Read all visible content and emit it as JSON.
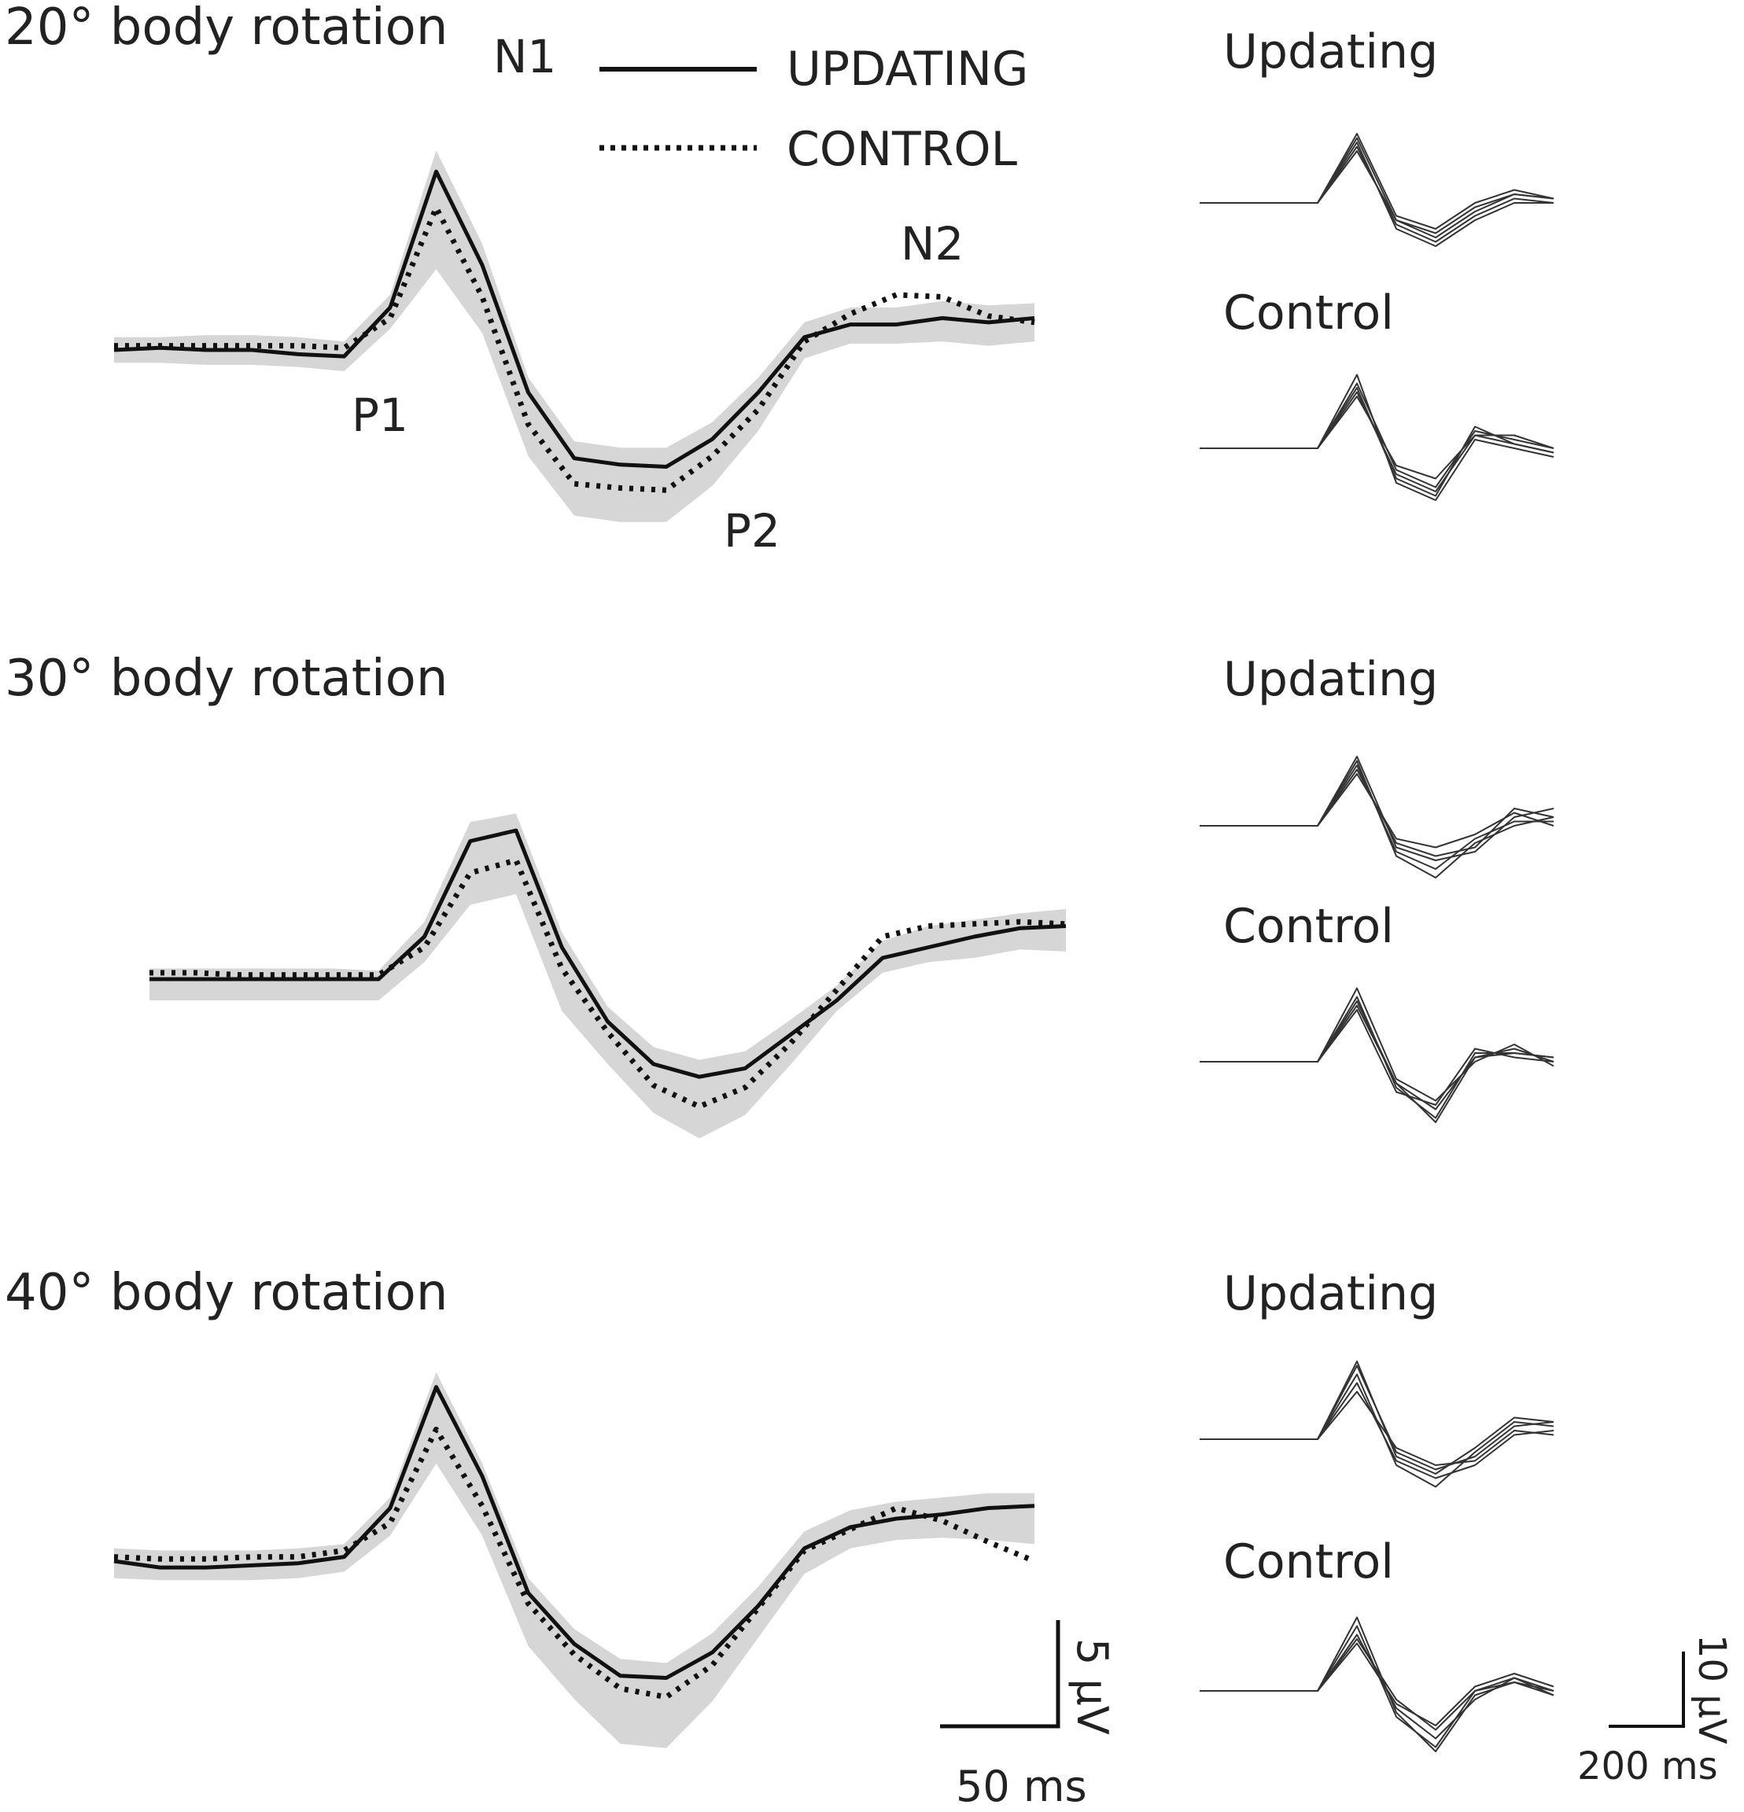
{
  "legend": {
    "updating": "UPDATING",
    "control": "CONTROL"
  },
  "peak_labels": [
    "N1",
    "P1",
    "P2",
    "N2"
  ],
  "scale_bars": {
    "main": {
      "amplitude": "5 μV",
      "time": "50 ms"
    },
    "individual": {
      "amplitude": "10 μV",
      "time": "200 ms"
    }
  },
  "colors": {
    "updating_line": "#111111",
    "control_line": "#111111",
    "error_band": "#d6d6d6",
    "individual_traces": "#333333"
  },
  "chart_data": [
    {
      "type": "line",
      "title": "20° body rotation",
      "x": [
        0,
        10,
        20,
        30,
        40,
        50,
        60,
        70,
        80,
        90,
        100,
        110,
        120,
        130,
        140,
        150,
        160,
        170,
        180,
        190,
        200
      ],
      "series": [
        {
          "name": "UPDATING",
          "style": "solid",
          "values": [
            0,
            0.1,
            0,
            0,
            -0.2,
            -0.3,
            2.0,
            8.4,
            4.0,
            -2.0,
            -5.1,
            -5.4,
            -5.5,
            -4.2,
            -2.0,
            0.6,
            1.2,
            1.2,
            1.5,
            1.3,
            1.5
          ]
        },
        {
          "name": "CONTROL",
          "style": "dotted",
          "values": [
            0.2,
            0.2,
            0.2,
            0.2,
            0.2,
            0.1,
            1.5,
            6.7,
            2.5,
            -3.5,
            -6.3,
            -6.5,
            -6.6,
            -5.0,
            -2.8,
            0.4,
            1.7,
            2.6,
            2.5,
            1.6,
            1.3
          ]
        }
      ],
      "band": {
        "upper": [
          0.6,
          0.6,
          0.7,
          0.7,
          0.6,
          0.4,
          2.6,
          9.4,
          5.0,
          -1.3,
          -4.3,
          -4.6,
          -4.6,
          -3.4,
          -1.3,
          1.3,
          2.0,
          2.0,
          2.3,
          2.1,
          2.2
        ],
        "lower": [
          -0.6,
          -0.6,
          -0.7,
          -0.7,
          -0.8,
          -1.0,
          1.0,
          3.8,
          0.8,
          -5.0,
          -7.8,
          -8.1,
          -8.1,
          -6.4,
          -3.8,
          -0.4,
          0.3,
          0.3,
          0.4,
          0.2,
          0.4
        ]
      },
      "peaks": {
        "P1": [
          55,
          -0.3
        ],
        "N1": [
          83,
          8.4
        ],
        "P2": [
          127,
          -6.6
        ],
        "N2": [
          178,
          2.6
        ]
      },
      "xlim": [
        0,
        200
      ],
      "ylim": [
        -10,
        10
      ],
      "xlabel": "",
      "ylabel": "",
      "grid": false
    },
    {
      "type": "line",
      "title": "30° body rotation",
      "x": [
        0,
        10,
        20,
        30,
        40,
        50,
        60,
        70,
        80,
        90,
        100,
        110,
        120,
        130,
        140,
        150,
        160,
        170,
        180,
        190,
        200
      ],
      "series": [
        {
          "name": "UPDATING",
          "style": "solid",
          "values": [
            0,
            0,
            0,
            0,
            0,
            0,
            2.0,
            6.5,
            7.0,
            1.5,
            -2.0,
            -4.0,
            -4.6,
            -4.2,
            -2.6,
            -1.0,
            1.0,
            1.5,
            2.0,
            2.4,
            2.5
          ]
        },
        {
          "name": "CONTROL",
          "style": "dotted",
          "values": [
            0.3,
            0.3,
            0.2,
            0.2,
            0.2,
            0.2,
            1.5,
            5.0,
            5.6,
            0.5,
            -2.5,
            -5.0,
            -6.0,
            -5.1,
            -3.0,
            -0.5,
            2.0,
            2.5,
            2.6,
            2.7,
            2.6
          ]
        }
      ],
      "band": {
        "upper": [
          0.5,
          0.5,
          0.5,
          0.5,
          0.5,
          0.4,
          2.7,
          7.4,
          7.8,
          2.2,
          -1.3,
          -3.2,
          -3.8,
          -3.4,
          -1.9,
          -0.3,
          1.8,
          2.5,
          2.8,
          3.1,
          3.3
        ],
        "lower": [
          -1.0,
          -1.0,
          -1.0,
          -1.0,
          -1.0,
          -1.0,
          0.8,
          3.5,
          4.0,
          -1.5,
          -4.0,
          -6.3,
          -7.5,
          -6.4,
          -4.0,
          -1.5,
          0.3,
          0.8,
          1.0,
          1.4,
          1.3
        ]
      },
      "xlim": [
        0,
        200
      ],
      "ylim": [
        -10,
        10
      ],
      "xlabel": "",
      "ylabel": "",
      "grid": false
    },
    {
      "type": "line",
      "title": "40° body rotation",
      "x": [
        0,
        10,
        20,
        30,
        40,
        50,
        60,
        70,
        80,
        90,
        100,
        110,
        120,
        130,
        140,
        150,
        160,
        170,
        180,
        190,
        200
      ],
      "series": [
        {
          "name": "UPDATING",
          "style": "solid",
          "values": [
            0,
            -0.3,
            -0.3,
            -0.2,
            -0.1,
            0.2,
            2.5,
            8.2,
            4.0,
            -1.5,
            -3.9,
            -5.4,
            -5.5,
            -4.3,
            -2.1,
            0.6,
            1.6,
            2.0,
            2.2,
            2.5,
            2.6
          ]
        },
        {
          "name": "CONTROL",
          "style": "dotted",
          "values": [
            0.2,
            0.1,
            0.1,
            0.2,
            0.2,
            0.5,
            1.8,
            6.2,
            2.6,
            -2.0,
            -4.4,
            -6.0,
            -6.4,
            -4.9,
            -2.2,
            0.5,
            1.5,
            2.5,
            1.9,
            0.9,
            0
          ]
        }
      ],
      "band": {
        "upper": [
          0.6,
          0.5,
          0.5,
          0.5,
          0.6,
          0.8,
          3.0,
          8.9,
          4.6,
          -0.8,
          -3.2,
          -4.6,
          -4.8,
          -3.4,
          -1.2,
          1.4,
          2.4,
          2.8,
          3.0,
          3.2,
          3.2
        ],
        "lower": [
          -0.8,
          -0.9,
          -0.9,
          -0.9,
          -0.8,
          -0.5,
          1.2,
          4.6,
          1.2,
          -4.0,
          -6.5,
          -8.6,
          -8.8,
          -6.6,
          -3.6,
          -0.6,
          0.6,
          1.0,
          1.1,
          1.0,
          0.8
        ]
      },
      "xlim": [
        0,
        200
      ],
      "ylim": [
        -10,
        10
      ],
      "xlabel": "",
      "ylabel": "",
      "grid": false
    },
    {
      "type": "line",
      "title": "Updating",
      "panel": "20° body rotation",
      "traces": [
        [
          0,
          0,
          0,
          0,
          6.0,
          -2.0,
          -4.0,
          -1.0,
          1.0,
          0.5
        ],
        [
          0,
          0,
          0,
          0,
          7.0,
          -3.0,
          -5.0,
          -2.0,
          0,
          0
        ],
        [
          0,
          0,
          0,
          0,
          8.0,
          -1.5,
          -3.0,
          0,
          1.5,
          0.5
        ],
        [
          0,
          0,
          0,
          0,
          6.5,
          -2.5,
          -4.5,
          -1.5,
          0.5,
          0
        ],
        [
          0,
          0,
          0,
          0,
          7.5,
          -2.0,
          -3.5,
          -0.5,
          1.0,
          0.5
        ]
      ]
    },
    {
      "type": "line",
      "title": "Control",
      "panel": "20° body rotation",
      "traces": [
        [
          0,
          0,
          0,
          0,
          6.5,
          -3.0,
          -5.0,
          1.5,
          0.5,
          -0.5
        ],
        [
          0,
          0,
          0,
          0,
          7.5,
          -2.5,
          -4.5,
          2.0,
          1.0,
          0
        ],
        [
          0,
          0,
          0,
          0,
          8.5,
          -4.0,
          -6.0,
          1.0,
          0,
          -1.0
        ],
        [
          0,
          0,
          0,
          0,
          6.0,
          -2.0,
          -3.5,
          1.5,
          1.5,
          0
        ],
        [
          0,
          0,
          0,
          0,
          7.0,
          -3.5,
          -5.5,
          2.5,
          0.5,
          -0.5
        ]
      ]
    },
    {
      "type": "line",
      "title": "Updating",
      "panel": "30° body rotation",
      "traces": [
        [
          0,
          0,
          0,
          0,
          6.5,
          -2.0,
          -3.5,
          -2.5,
          2.0,
          1.0
        ],
        [
          0,
          0,
          0,
          0,
          7.0,
          -3.0,
          -5.0,
          -1.5,
          0.5,
          0.5
        ],
        [
          0,
          0,
          0,
          0,
          8.0,
          -2.5,
          -4.0,
          -3.0,
          1.0,
          2.0
        ],
        [
          0,
          0,
          0,
          0,
          6.0,
          -1.5,
          -2.5,
          -1.0,
          1.5,
          0
        ],
        [
          0,
          0,
          0,
          0,
          7.5,
          -3.5,
          -6.0,
          -2.0,
          0,
          1.0
        ]
      ]
    },
    {
      "type": "line",
      "title": "Control",
      "panel": "30° body rotation",
      "traces": [
        [
          0,
          0,
          0,
          0,
          6.5,
          -2.5,
          -5.5,
          0.5,
          1.5,
          0
        ],
        [
          0,
          0,
          0,
          0,
          7.5,
          -3.0,
          -6.5,
          1.0,
          1.0,
          0.5
        ],
        [
          0,
          0,
          0,
          0,
          8.5,
          -2.0,
          -4.5,
          0,
          2.0,
          -0.5
        ],
        [
          0,
          0,
          0,
          0,
          6.0,
          -3.5,
          -5.0,
          1.5,
          0.5,
          0
        ],
        [
          0,
          0,
          0,
          0,
          7.0,
          -2.5,
          -7.0,
          0.5,
          1.0,
          0.5
        ]
      ]
    },
    {
      "type": "line",
      "title": "Updating",
      "panel": "40° body rotation",
      "traces": [
        [
          0,
          0,
          0,
          0,
          8.5,
          -1.5,
          -3.5,
          -2.0,
          1.5,
          2.0
        ],
        [
          0,
          0,
          0,
          0,
          6.5,
          -2.5,
          -4.5,
          -3.0,
          0.5,
          1.0
        ],
        [
          0,
          0,
          0,
          0,
          7.5,
          -3.0,
          -5.5,
          -1.5,
          2.0,
          1.5
        ],
        [
          0,
          0,
          0,
          0,
          5.5,
          -1.0,
          -3.0,
          -2.5,
          1.0,
          0.5
        ],
        [
          0,
          0,
          0,
          0,
          9.0,
          -2.0,
          -4.0,
          -1.0,
          2.5,
          2.0
        ]
      ]
    },
    {
      "type": "line",
      "title": "Control",
      "panel": "40° body rotation",
      "traces": [
        [
          0,
          0,
          0,
          0,
          6.5,
          -2.0,
          -5.5,
          -1.0,
          1.5,
          0
        ],
        [
          0,
          0,
          0,
          0,
          7.5,
          -3.0,
          -6.5,
          0,
          1.0,
          -0.5
        ],
        [
          0,
          0,
          0,
          0,
          5.5,
          -1.5,
          -4.0,
          0.5,
          2.0,
          0.5
        ],
        [
          0,
          0,
          0,
          0,
          8.5,
          -2.5,
          -7.0,
          -0.5,
          1.0,
          0
        ],
        [
          0,
          0,
          0,
          0,
          6.0,
          -1.0,
          -4.5,
          0,
          1.5,
          -0.5
        ]
      ]
    }
  ]
}
